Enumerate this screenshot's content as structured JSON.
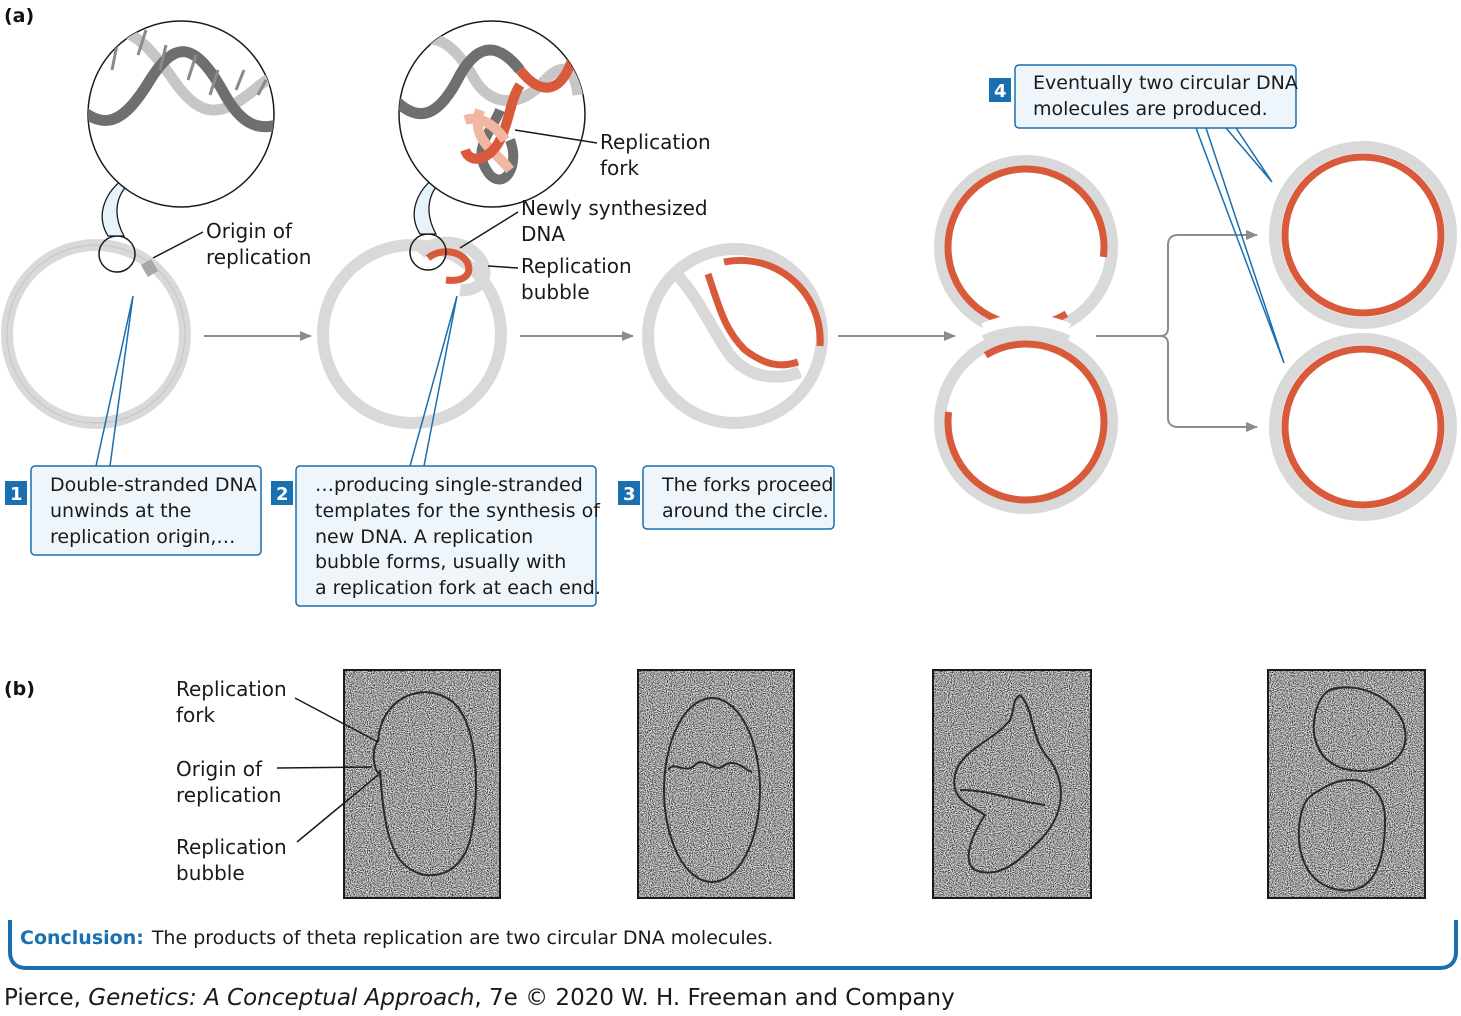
{
  "panel_a_label": "(a)",
  "panel_b_label": "(b)",
  "labels": {
    "origin_line1": "Origin of",
    "origin_line2": "replication",
    "fork_line1": "Replication",
    "fork_line2": "fork",
    "newly_line1": "Newly synthesized",
    "newly_line2": "DNA",
    "bubble_line1": "Replication",
    "bubble_line2": "bubble"
  },
  "steps": [
    {
      "number": "1",
      "lines": [
        "Double-stranded DNA",
        "unwinds at the",
        "replication origin,…"
      ]
    },
    {
      "number": "2",
      "lines": [
        "…producing single-stranded",
        "templates for the synthesis of",
        "new DNA. A replication",
        "bubble forms, usually with",
        "a replication fork at each end."
      ]
    },
    {
      "number": "3",
      "lines": [
        "The forks proceed",
        "around the circle."
      ]
    },
    {
      "number": "4",
      "lines": [
        "Eventually two circular DNA",
        "molecules are produced."
      ]
    }
  ],
  "micro_labels": {
    "fork_line1": "Replication",
    "fork_line2": "fork",
    "origin_line1": "Origin of",
    "origin_line2": "replication",
    "bubble_line1": "Replication",
    "bubble_line2": "bubble"
  },
  "conclusion": {
    "bold": "Conclusion:",
    "text": "The products of theta replication are two circular DNA molecules."
  },
  "credit": {
    "author": "Pierce, ",
    "title": "Genetics: A Conceptual Approach",
    "rest": ", 7e © 2020 W. H. Freeman and Company"
  },
  "colors": {
    "template_strand": "#d9d9d9",
    "new_strand": "#d85a3a",
    "callout_blue": "#1a6fb0",
    "callout_fill": "#eef6fc",
    "arrow_gray": "#8c8c8c"
  }
}
